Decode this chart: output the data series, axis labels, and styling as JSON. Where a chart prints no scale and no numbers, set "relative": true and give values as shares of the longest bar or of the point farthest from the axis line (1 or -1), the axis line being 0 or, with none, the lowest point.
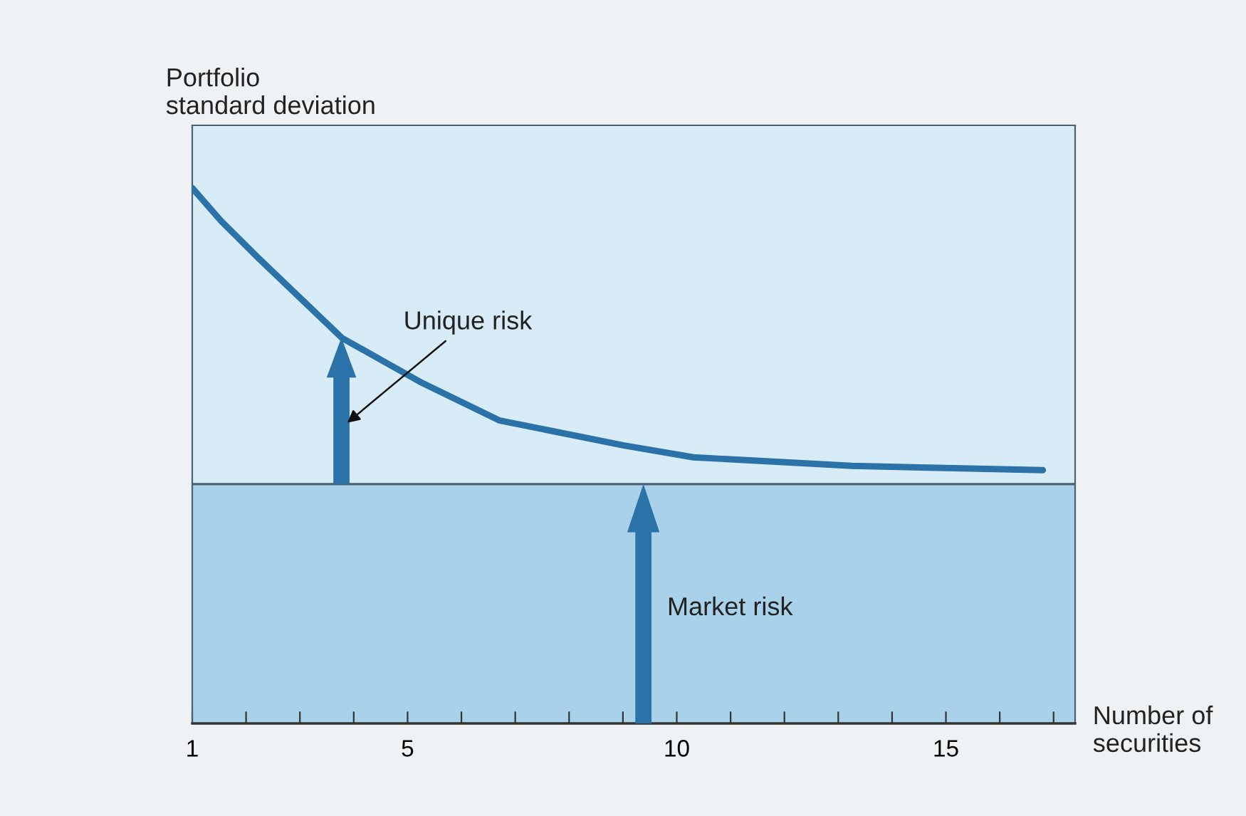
{
  "chart_data": {
    "type": "line",
    "relative": true,
    "xlabel": "Number of\nsecurities",
    "ylabel": "Portfolio\nstandard deviation",
    "series": [
      {
        "color": "#2b72a8",
        "x": [
          1,
          1.53,
          2.22,
          3.78,
          5.23,
          6.7,
          9.02,
          10.31,
          13.25,
          16.8
        ],
        "values": [
          1.0,
          0.939,
          0.87,
          0.72,
          0.638,
          0.566,
          0.519,
          0.497,
          0.481,
          0.473
        ]
      }
    ],
    "xlim": [
      1,
      17.4
    ],
    "xticks": [
      1,
      {
        "value": 2,
        "label": null
      },
      {
        "value": 3,
        "label": null
      },
      {
        "value": 4,
        "label": null
      },
      5,
      {
        "value": 6,
        "label": null
      },
      {
        "value": 7,
        "label": null
      },
      {
        "value": 8,
        "label": null
      },
      {
        "value": 9,
        "label": null
      },
      10,
      {
        "value": 11,
        "label": null
      },
      {
        "value": 12,
        "label": null
      },
      {
        "value": 13,
        "label": null
      },
      {
        "value": 14,
        "label": null
      },
      15,
      {
        "value": 16,
        "label": null
      },
      {
        "value": 17,
        "label": null
      }
    ],
    "ref_lines": [
      {
        "axis": "y",
        "value": 0.447,
        "color": "#4a6272"
      }
    ],
    "bands": [
      {
        "axis": "y",
        "from": 0,
        "to": 0.447,
        "color": "#a9d1ea"
      }
    ],
    "annotations": [
      "Unique risk",
      "Market risk"
    ],
    "grid": false,
    "marker": "none",
    "line_style": "solid"
  }
}
